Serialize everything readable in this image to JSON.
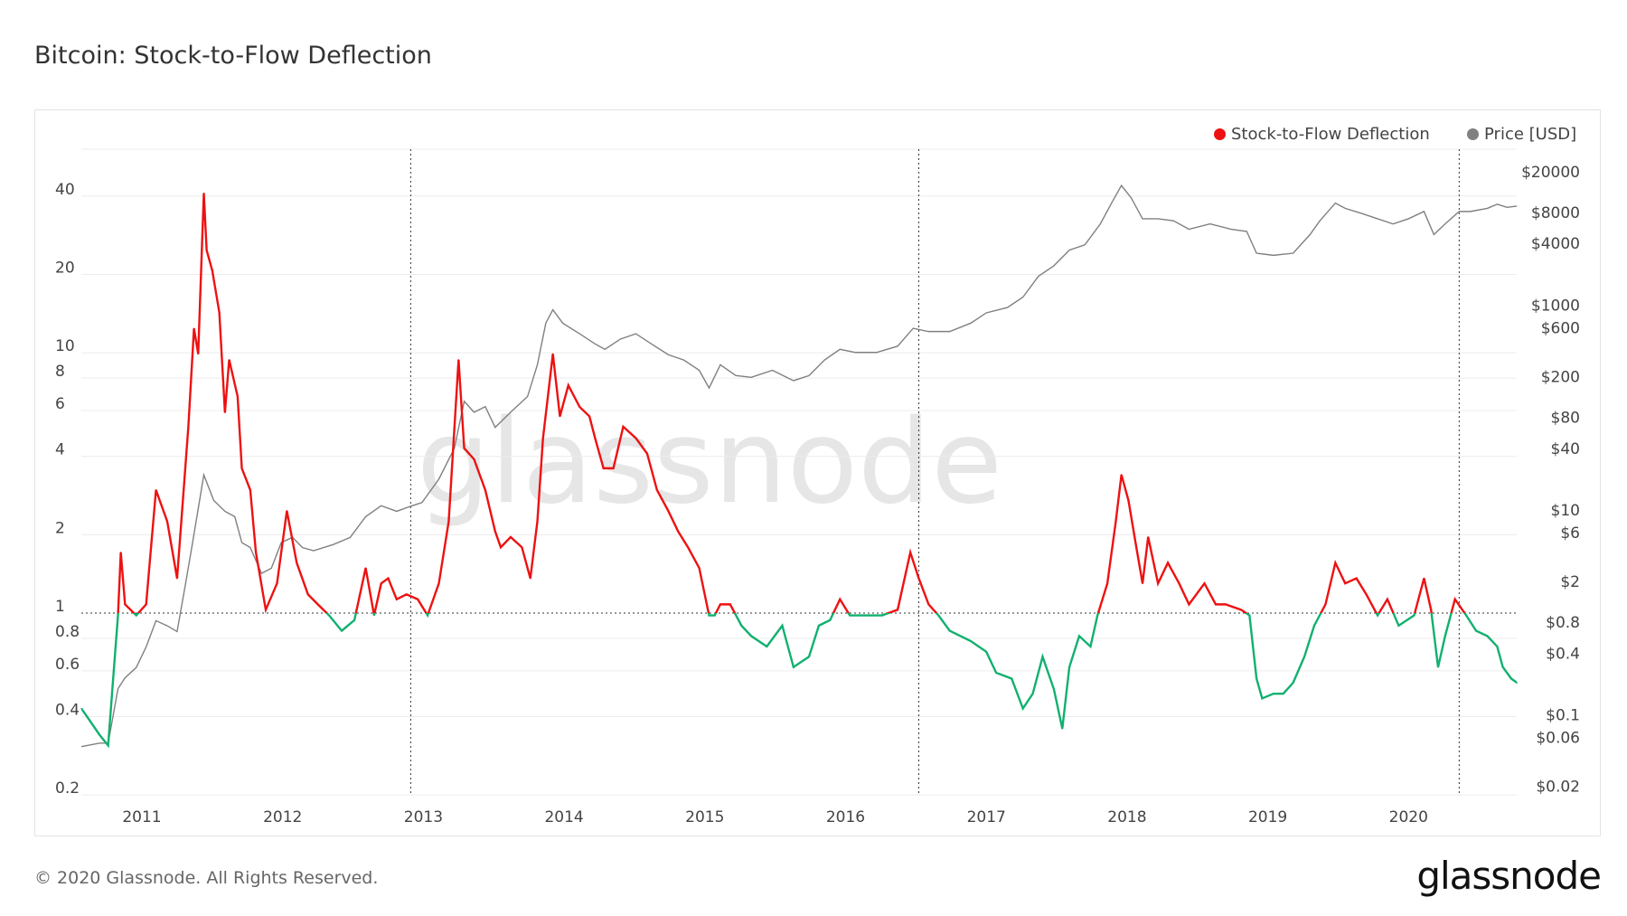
{
  "title": "Bitcoin: Stock-to-Flow Deflection",
  "footer": "© 2020 Glassnode. All Rights Reserved.",
  "logo": "glassnode",
  "watermark": "glassnode",
  "colors": {
    "above": "#ee1111",
    "below": "#11b06f",
    "price": "#808080",
    "grid": "#ececec"
  },
  "chart_data": {
    "type": "line",
    "title": "Bitcoin: Stock-to-Flow Deflection",
    "legend": {
      "placement": "top-right",
      "items": [
        {
          "name": "Stock-to-Flow Deflection",
          "color": "#ee1111"
        },
        {
          "name": "Price [USD]",
          "color": "#808080"
        }
      ]
    },
    "xlim": [
      2010.57,
      2020.77
    ],
    "x_ticks": [
      "2011",
      "2012",
      "2013",
      "2014",
      "2015",
      "2016",
      "2017",
      "2018",
      "2019",
      "2020"
    ],
    "y_left": {
      "scale": "log",
      "range": [
        0.2,
        50
      ],
      "ticks": [
        "40",
        "20",
        "10",
        "8",
        "6",
        "4",
        "2",
        "1",
        "0.8",
        "0.6",
        "0.4",
        "0.2"
      ],
      "reference_line": 1
    },
    "y_right": {
      "scale": "log",
      "range": [
        0.02,
        20000
      ],
      "ticks": [
        "$20000",
        "$8000",
        "$4000",
        "$1000",
        "$600",
        "$200",
        "$80",
        "$40",
        "$10",
        "$6",
        "$2",
        "$0.8",
        "$0.4",
        "$0.1",
        "$0.06",
        "$0.02"
      ]
    },
    "vlines": [
      2012.91,
      2016.52,
      2020.36
    ],
    "series": [
      {
        "name": "Stock-to-Flow Deflection",
        "axis": "left",
        "x": [
          2010.57,
          2010.7,
          2010.76,
          2010.79,
          2010.83,
          2010.85,
          2010.88,
          2010.96,
          2011.03,
          2011.1,
          2011.18,
          2011.25,
          2011.33,
          2011.37,
          2011.4,
          2011.44,
          2011.46,
          2011.5,
          2011.55,
          2011.59,
          2011.62,
          2011.68,
          2011.71,
          2011.77,
          2011.81,
          2011.88,
          2011.96,
          2012.03,
          2012.1,
          2012.18,
          2012.25,
          2012.33,
          2012.42,
          2012.51,
          2012.59,
          2012.65,
          2012.7,
          2012.75,
          2012.81,
          2012.88,
          2012.96,
          2013.03,
          2013.11,
          2013.18,
          2013.25,
          2013.29,
          2013.36,
          2013.44,
          2013.51,
          2013.55,
          2013.62,
          2013.7,
          2013.76,
          2013.81,
          2013.85,
          2013.92,
          2013.97,
          2014.03,
          2014.11,
          2014.18,
          2014.22,
          2014.28,
          2014.35,
          2014.42,
          2014.51,
          2014.59,
          2014.66,
          2014.74,
          2014.81,
          2014.88,
          2014.96,
          2015.03,
          2015.07,
          2015.11,
          2015.18,
          2015.26,
          2015.33,
          2015.44,
          2015.55,
          2015.63,
          2015.74,
          2015.81,
          2015.89,
          2015.96,
          2016.03,
          2016.14,
          2016.26,
          2016.37,
          2016.46,
          2016.52,
          2016.59,
          2016.66,
          2016.74,
          2016.89,
          2017.0,
          2017.07,
          2017.18,
          2017.26,
          2017.33,
          2017.4,
          2017.48,
          2017.54,
          2017.59,
          2017.66,
          2017.74,
          2017.79,
          2017.86,
          2017.92,
          2017.96,
          2018.01,
          2018.06,
          2018.11,
          2018.15,
          2018.22,
          2018.29,
          2018.37,
          2018.44,
          2018.55,
          2018.63,
          2018.7,
          2018.81,
          2018.87,
          2018.92,
          2018.96,
          2019.04,
          2019.11,
          2019.18,
          2019.26,
          2019.33,
          2019.41,
          2019.48,
          2019.55,
          2019.63,
          2019.7,
          2019.78,
          2019.85,
          2019.93,
          2020.04,
          2020.11,
          2020.16,
          2020.21,
          2020.26,
          2020.33,
          2020.41,
          2020.48,
          2020.56,
          2020.63,
          2020.67,
          2020.73,
          2020.77
        ],
        "values": [
          0.43,
          0.34,
          0.31,
          0.51,
          0.98,
          1.71,
          1.08,
          0.98,
          1.08,
          2.97,
          2.25,
          1.36,
          5.2,
          12.4,
          9.9,
          41,
          24.8,
          20.7,
          14.3,
          5.9,
          9.4,
          6.8,
          3.6,
          2.97,
          1.71,
          1.03,
          1.3,
          2.47,
          1.56,
          1.18,
          1.08,
          0.98,
          0.855,
          0.94,
          1.49,
          0.98,
          1.3,
          1.36,
          1.13,
          1.18,
          1.13,
          0.98,
          1.3,
          2.25,
          9.4,
          4.3,
          3.9,
          2.97,
          2.06,
          1.79,
          1.96,
          1.79,
          1.36,
          2.25,
          4.7,
          9.9,
          5.7,
          7.5,
          6.2,
          5.7,
          4.7,
          3.6,
          3.6,
          5.2,
          4.7,
          4.1,
          2.97,
          2.47,
          2.06,
          1.79,
          1.49,
          0.98,
          0.98,
          1.08,
          1.08,
          0.895,
          0.816,
          0.744,
          0.895,
          0.62,
          0.68,
          0.895,
          0.94,
          1.13,
          0.98,
          0.98,
          0.98,
          1.03,
          1.71,
          1.36,
          1.08,
          0.98,
          0.855,
          0.78,
          0.71,
          0.59,
          0.56,
          0.43,
          0.49,
          0.68,
          0.51,
          0.36,
          0.62,
          0.816,
          0.744,
          0.98,
          1.3,
          2.25,
          3.4,
          2.71,
          1.87,
          1.3,
          1.96,
          1.3,
          1.56,
          1.3,
          1.08,
          1.3,
          1.08,
          1.08,
          1.03,
          0.98,
          0.56,
          0.47,
          0.49,
          0.49,
          0.54,
          0.68,
          0.895,
          1.08,
          1.56,
          1.3,
          1.36,
          1.18,
          0.98,
          1.13,
          0.895,
          0.98,
          1.36,
          1.03,
          0.62,
          0.816,
          1.13,
          0.98,
          0.855,
          0.816,
          0.744,
          0.62,
          0.56,
          0.54
        ]
      },
      {
        "name": "Price [USD]",
        "axis": "right",
        "x": [
          2010.57,
          2010.7,
          2010.76,
          2010.79,
          2010.83,
          2010.88,
          2010.96,
          2011.03,
          2011.1,
          2011.18,
          2011.25,
          2011.31,
          2011.36,
          2011.44,
          2011.51,
          2011.59,
          2011.66,
          2011.71,
          2011.77,
          2011.85,
          2011.92,
          2011.99,
          2012.07,
          2012.14,
          2012.22,
          2012.36,
          2012.48,
          2012.59,
          2012.7,
          2012.81,
          2012.92,
          2012.99,
          2013.11,
          2013.22,
          2013.29,
          2013.36,
          2013.44,
          2013.51,
          2013.62,
          2013.74,
          2013.81,
          2013.87,
          2013.92,
          2013.99,
          2014.11,
          2014.22,
          2014.29,
          2014.4,
          2014.51,
          2014.62,
          2014.74,
          2014.85,
          2014.96,
          2015.03,
          2015.11,
          2015.22,
          2015.33,
          2015.48,
          2015.63,
          2015.74,
          2015.85,
          2015.96,
          2016.07,
          2016.22,
          2016.37,
          2016.48,
          2016.59,
          2016.74,
          2016.89,
          2017.0,
          2017.15,
          2017.26,
          2017.37,
          2017.48,
          2017.59,
          2017.7,
          2017.81,
          2017.89,
          2017.96,
          2018.03,
          2018.11,
          2018.22,
          2018.33,
          2018.44,
          2018.59,
          2018.74,
          2018.85,
          2018.92,
          2019.04,
          2019.18,
          2019.3,
          2019.37,
          2019.48,
          2019.55,
          2019.67,
          2019.78,
          2019.89,
          2020.0,
          2020.11,
          2020.18,
          2020.26,
          2020.36,
          2020.44,
          2020.56,
          2020.63,
          2020.7,
          2020.77
        ],
        "values": [
          0.049,
          0.053,
          0.053,
          0.089,
          0.18,
          0.23,
          0.29,
          0.46,
          0.83,
          0.74,
          0.65,
          1.9,
          4.8,
          22,
          12.4,
          9.7,
          8.6,
          4.8,
          4.3,
          2.4,
          2.7,
          4.8,
          5.4,
          4.3,
          4.0,
          4.6,
          5.4,
          8.6,
          11,
          9.7,
          11,
          11.8,
          20,
          40,
          115,
          90,
          102,
          64,
          90,
          128,
          261,
          667,
          900,
          667,
          525,
          418,
          370,
          466,
          525,
          418,
          328,
          291,
          231,
          155,
          261,
          205,
          197,
          231,
          183,
          205,
          291,
          370,
          345,
          345,
          397,
          593,
          552,
          552,
          667,
          840,
          947,
          1195,
          1910,
          2420,
          3440,
          3870,
          6200,
          9900,
          14700,
          11100,
          6960,
          6960,
          6650,
          5500,
          6200,
          5500,
          5240,
          3210,
          3060,
          3210,
          4880,
          6650,
          9900,
          8800,
          7820,
          6960,
          6200,
          6960,
          8200,
          4880,
          6200,
          8200,
          8200,
          8800,
          9650,
          9000,
          9260
        ]
      }
    ]
  }
}
